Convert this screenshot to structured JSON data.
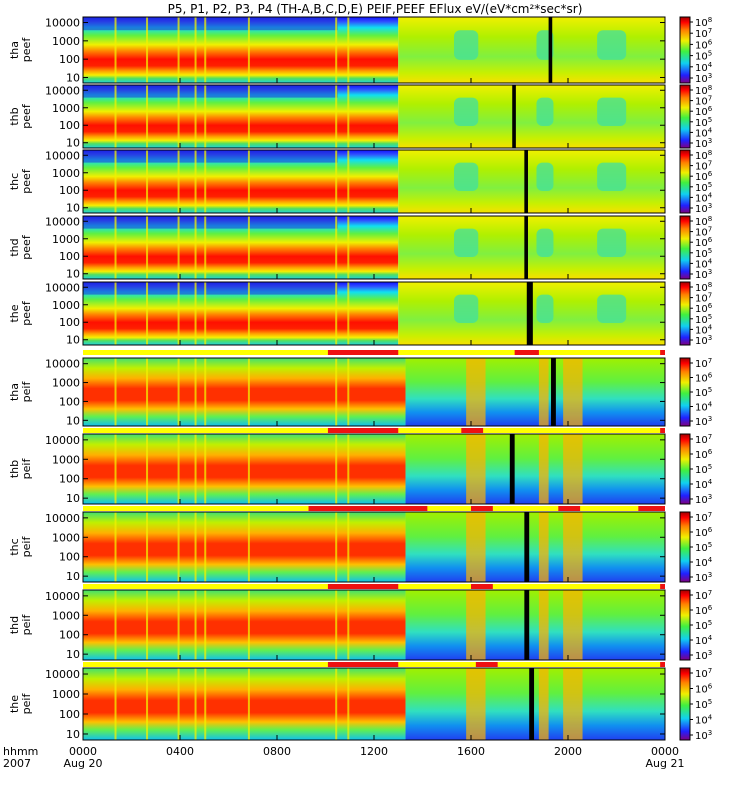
{
  "title": "P5, P1, P2, P3, P4 (TH-A,B,C,D,E) PEIF,PEEF EFlux eV/(eV*cm²*sec*sr)",
  "x_axis": {
    "label_line1": "hhmm",
    "label_line2": "2007",
    "ticks": [
      "0000",
      "0400",
      "0800",
      "1200",
      "1600",
      "2000",
      "0000"
    ],
    "dates": [
      "Aug 20",
      "Aug 21"
    ],
    "range_hours": [
      0,
      24
    ]
  },
  "colors": {
    "bar_bg": "#ffff00",
    "bar_red": "#ee1111",
    "black": "#000000"
  },
  "chart_data": [
    {
      "type": "heatmap",
      "probe": "tha",
      "product": "peef",
      "species": "electron",
      "ylabel": "tha peef",
      "yticks": [
        "10000",
        "1000",
        "100",
        "10"
      ],
      "ylim": [
        5,
        20000
      ],
      "cbar_ticks": [
        "10^8",
        "10^7",
        "10^6",
        "10^5",
        "10^4",
        "10^3"
      ],
      "data_gap_hours": [
        [
          19.2,
          19.35
        ]
      ]
    },
    {
      "type": "heatmap",
      "probe": "thb",
      "product": "peef",
      "species": "electron",
      "ylabel": "thb peef",
      "yticks": [
        "10000",
        "1000",
        "100",
        "10"
      ],
      "ylim": [
        5,
        20000
      ],
      "cbar_ticks": [
        "10^8",
        "10^7",
        "10^6",
        "10^5",
        "10^4",
        "10^3"
      ],
      "data_gap_hours": [
        [
          17.7,
          17.85
        ]
      ]
    },
    {
      "type": "heatmap",
      "probe": "thc",
      "product": "peef",
      "species": "electron",
      "ylabel": "thc peef",
      "yticks": [
        "10000",
        "1000",
        "100",
        "10"
      ],
      "ylim": [
        5,
        20000
      ],
      "cbar_ticks": [
        "10^8",
        "10^7",
        "10^6",
        "10^5",
        "10^4",
        "10^3"
      ],
      "data_gap_hours": [
        [
          18.2,
          18.35
        ]
      ]
    },
    {
      "type": "heatmap",
      "probe": "thd",
      "product": "peef",
      "species": "electron",
      "ylabel": "thd peef",
      "yticks": [
        "10000",
        "1000",
        "100",
        "10"
      ],
      "ylim": [
        5,
        20000
      ],
      "cbar_ticks": [
        "10^8",
        "10^7",
        "10^6",
        "10^5",
        "10^4",
        "10^3"
      ],
      "data_gap_hours": [
        [
          18.2,
          18.35
        ]
      ]
    },
    {
      "type": "heatmap",
      "probe": "the",
      "product": "peef",
      "species": "electron",
      "ylabel": "the peef",
      "yticks": [
        "10000",
        "1000",
        "100",
        "10"
      ],
      "ylim": [
        5,
        20000
      ],
      "cbar_ticks": [
        "10^8",
        "10^7",
        "10^6",
        "10^5",
        "10^4",
        "10^3"
      ],
      "data_gap_hours": [
        [
          18.3,
          18.55
        ]
      ],
      "mode_bar_red_hours": [
        [
          10.1,
          13.0
        ],
        [
          17.8,
          18.8
        ],
        [
          23.8,
          24.0
        ]
      ]
    },
    {
      "type": "heatmap",
      "probe": "tha",
      "product": "peif",
      "species": "ion",
      "ylabel": "tha peif",
      "yticks": [
        "10000",
        "1000",
        "100",
        "10"
      ],
      "ylim": [
        5,
        20000
      ],
      "cbar_ticks": [
        "10^7",
        "10^6",
        "10^5",
        "10^4",
        "10^3"
      ],
      "data_gap_hours": [
        [
          19.3,
          19.5
        ]
      ],
      "mode_bar_red_hours": [
        [
          10.1,
          13.0
        ],
        [
          15.6,
          16.5
        ],
        [
          23.8,
          24.0
        ]
      ]
    },
    {
      "type": "heatmap",
      "probe": "thb",
      "product": "peif",
      "species": "ion",
      "ylabel": "thb peif",
      "yticks": [
        "10000",
        "1000",
        "100",
        "10"
      ],
      "ylim": [
        5,
        20000
      ],
      "cbar_ticks": [
        "10^7",
        "10^6",
        "10^5",
        "10^4",
        "10^3"
      ],
      "data_gap_hours": [
        [
          17.6,
          17.8
        ]
      ],
      "mode_bar_red_hours": [
        [
          9.3,
          14.2
        ],
        [
          16.0,
          16.9
        ],
        [
          19.6,
          20.5
        ],
        [
          22.9,
          24.0
        ]
      ]
    },
    {
      "type": "heatmap",
      "probe": "thc",
      "product": "peif",
      "species": "ion",
      "ylabel": "thc peif",
      "yticks": [
        "10000",
        "1000",
        "100",
        "10"
      ],
      "ylim": [
        5,
        20000
      ],
      "cbar_ticks": [
        "10^7",
        "10^6",
        "10^5",
        "10^4",
        "10^3"
      ],
      "data_gap_hours": [
        [
          18.2,
          18.4
        ]
      ],
      "mode_bar_red_hours": [
        [
          10.1,
          13.0
        ],
        [
          16.0,
          16.9
        ],
        [
          23.8,
          24.0
        ]
      ]
    },
    {
      "type": "heatmap",
      "probe": "thd",
      "product": "peif",
      "species": "ion",
      "ylabel": "thd peif",
      "yticks": [
        "10000",
        "1000",
        "100",
        "10"
      ],
      "ylim": [
        5,
        20000
      ],
      "cbar_ticks": [
        "10^7",
        "10^6",
        "10^5",
        "10^4",
        "10^3"
      ],
      "data_gap_hours": [
        [
          18.2,
          18.4
        ]
      ],
      "mode_bar_red_hours": [
        [
          10.1,
          13.0
        ],
        [
          16.2,
          17.1
        ],
        [
          23.8,
          24.0
        ]
      ]
    },
    {
      "type": "heatmap",
      "probe": "the",
      "product": "peif",
      "species": "ion",
      "ylabel": "the peif",
      "yticks": [
        "10000",
        "1000",
        "100",
        "10"
      ],
      "ylim": [
        5,
        20000
      ],
      "cbar_ticks": [
        "10^7",
        "10^6",
        "10^5",
        "10^4",
        "10^3"
      ],
      "data_gap_hours": [
        [
          18.4,
          18.6
        ]
      ]
    }
  ]
}
